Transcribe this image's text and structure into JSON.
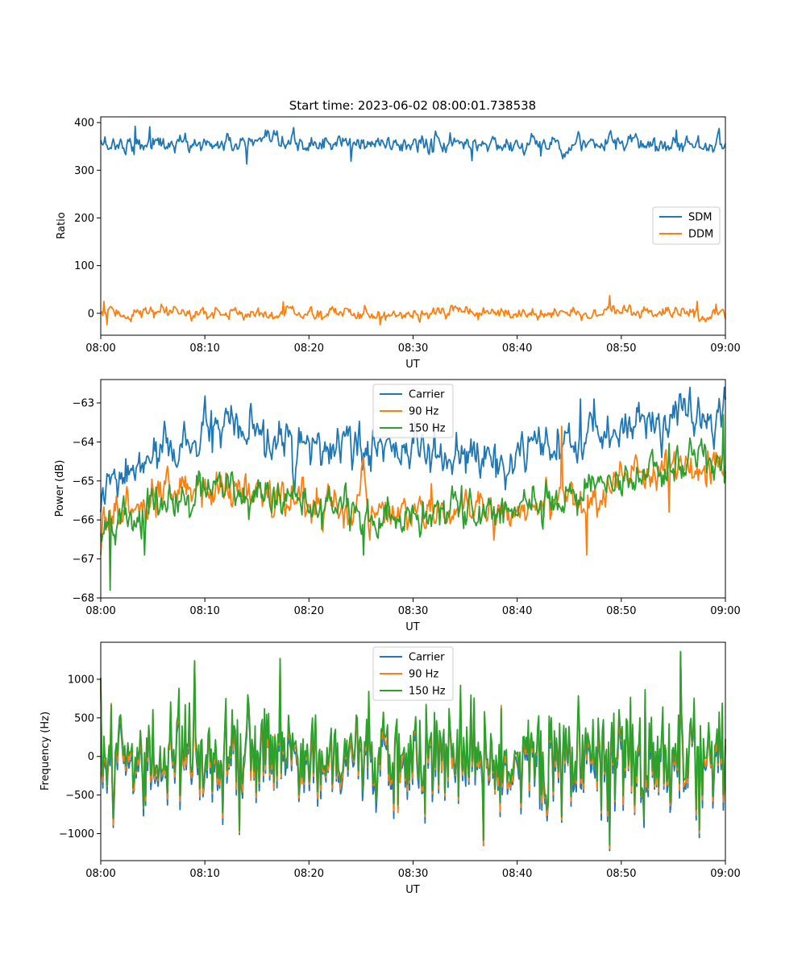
{
  "chart_data": [
    {
      "type": "line",
      "title": "Start time: 2023-06-02 08:00:01.738538",
      "xlabel": "UT",
      "ylabel": "Ratio",
      "x_range": [
        "08:00",
        "09:00"
      ],
      "x_ticks": [
        "08:00",
        "08:10",
        "08:20",
        "08:30",
        "08:40",
        "08:50",
        "09:00"
      ],
      "ylim": [
        -46,
        412
      ],
      "y_ticks": [
        0,
        100,
        200,
        300,
        400
      ],
      "grid": false,
      "legend_position": "center-right",
      "series": [
        {
          "name": "SDM",
          "color": "#1f77b4",
          "level": 355,
          "noise": 13,
          "trend": [],
          "spikes": [
            [
              33,
              392
            ],
            [
              47,
              391
            ],
            [
              140,
              313
            ],
            [
              240,
              319
            ],
            [
              356,
              320
            ],
            [
              422,
              330
            ],
            [
              458,
              381
            ],
            [
              552,
              384
            ],
            [
              600,
              326
            ]
          ]
        },
        {
          "name": "DDM",
          "color": "#ff7f0e",
          "level": 0,
          "noise": 9,
          "trend": [],
          "spikes": [
            [
              3,
              25
            ],
            [
              6,
              -24
            ],
            [
              175,
              24
            ],
            [
              268,
              -24
            ],
            [
              488,
              37
            ],
            [
              572,
              25
            ],
            [
              590,
              19
            ]
          ]
        }
      ]
    },
    {
      "type": "line",
      "title": "",
      "xlabel": "UT",
      "ylabel": "Power (dB)",
      "x_range": [
        "08:00",
        "09:00"
      ],
      "x_ticks": [
        "08:00",
        "08:10",
        "08:20",
        "08:30",
        "08:40",
        "08:50",
        "09:00"
      ],
      "ylim": [
        -68,
        -62.4
      ],
      "y_ticks": [
        -68,
        -67,
        -66,
        -65,
        -64,
        -63
      ],
      "grid": false,
      "legend_position": "upper-center",
      "series": [
        {
          "name": "Carrier",
          "color": "#1f77b4",
          "level": -64.6,
          "noise": 0.38,
          "trend": [
            [
              0,
              -65.4
            ],
            [
              50,
              -64.4
            ],
            [
              110,
              -63.7
            ],
            [
              200,
              -64.2
            ],
            [
              300,
              -64.2
            ],
            [
              380,
              -64.6
            ],
            [
              450,
              -64.1
            ],
            [
              510,
              -63.5
            ],
            [
              560,
              -63.3
            ],
            [
              600,
              -63.4
            ]
          ],
          "spikes": [
            [
              0,
              -65.8
            ],
            [
              106,
              -63.2
            ],
            [
              460,
              -62.9
            ],
            [
              565,
              -62.6
            ],
            [
              598,
              -62.6
            ]
          ]
        },
        {
          "name": "90 Hz",
          "color": "#ff7f0e",
          "level": -65.6,
          "noise": 0.35,
          "trend": [
            [
              0,
              -66.0
            ],
            [
              60,
              -65.5
            ],
            [
              110,
              -65.1
            ],
            [
              200,
              -65.6
            ],
            [
              300,
              -65.8
            ],
            [
              380,
              -65.8
            ],
            [
              450,
              -65.4
            ],
            [
              500,
              -65.1
            ],
            [
              560,
              -64.6
            ],
            [
              600,
              -64.6
            ]
          ],
          "spikes": [
            [
              0,
              -66.9
            ],
            [
              442,
              -63.6
            ],
            [
              466,
              -66.9
            ],
            [
              545,
              -65.8
            ]
          ]
        },
        {
          "name": "150 Hz",
          "color": "#2ca02c",
          "level": -65.6,
          "noise": 0.35,
          "trend": [
            [
              0,
              -66.2
            ],
            [
              60,
              -65.6
            ],
            [
              110,
              -65.2
            ],
            [
              200,
              -65.6
            ],
            [
              300,
              -65.9
            ],
            [
              380,
              -65.8
            ],
            [
              450,
              -65.4
            ],
            [
              500,
              -65.0
            ],
            [
              560,
              -64.5
            ],
            [
              600,
              -64.5
            ]
          ],
          "spikes": [
            [
              9,
              -67.8
            ],
            [
              42,
              -66.9
            ],
            [
              252,
              -66.9
            ],
            [
              597,
              -63.3
            ]
          ]
        }
      ]
    },
    {
      "type": "line",
      "title": "",
      "xlabel": "UT",
      "ylabel": "Frequency (Hz)",
      "x_range": [
        "08:00",
        "09:00"
      ],
      "x_ticks": [
        "08:00",
        "08:10",
        "08:20",
        "08:30",
        "08:40",
        "08:50",
        "09:00"
      ],
      "ylim": [
        -1350,
        1480
      ],
      "y_ticks": [
        -1000,
        -500,
        0,
        500,
        1000
      ],
      "grid": false,
      "legend_position": "upper-center",
      "series": [
        {
          "name": "Carrier",
          "color": "#1f77b4",
          "level": -60,
          "noise": 330,
          "trend": [],
          "spikes": [
            [
              90,
              1230
            ],
            [
              133,
              -1010
            ],
            [
              172,
              1270
            ],
            [
              488,
              -1220
            ],
            [
              556,
              1350
            ]
          ]
        },
        {
          "name": "90 Hz",
          "color": "#ff7f0e",
          "level": 0,
          "noise": 330,
          "trend": [],
          "spikes": [
            [
              90,
              1230
            ],
            [
              133,
              -990
            ],
            [
              172,
              1270
            ],
            [
              488,
              -1190
            ],
            [
              556,
              1350
            ]
          ]
        },
        {
          "name": "150 Hz",
          "color": "#2ca02c",
          "level": 60,
          "noise": 330,
          "trend": [],
          "spikes": [
            [
              90,
              1240
            ],
            [
              133,
              -960
            ],
            [
              172,
              1260
            ],
            [
              488,
              -1150
            ],
            [
              556,
              1360
            ]
          ]
        }
      ]
    }
  ]
}
